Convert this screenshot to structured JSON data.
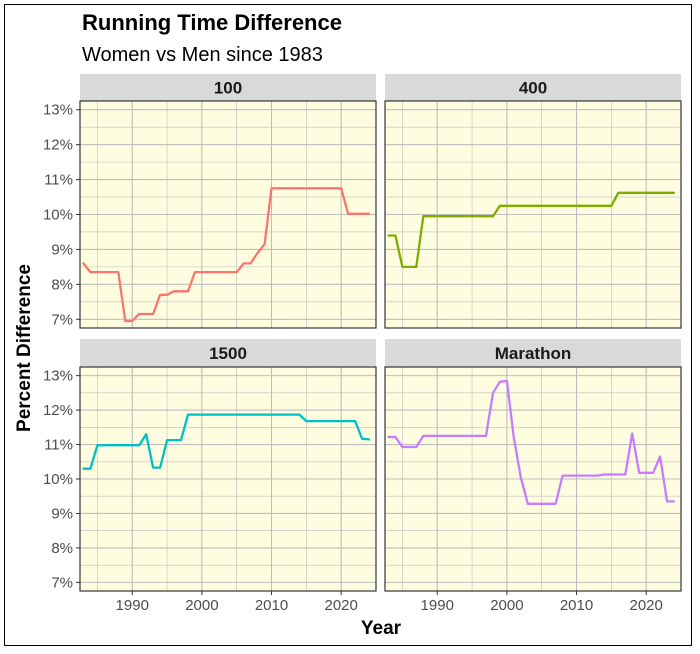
{
  "chart_data": {
    "type": "line",
    "title": "Running Time Difference",
    "subtitle": "Women vs Men since 1983",
    "xlabel": "Year",
    "ylabel": "Percent Difference",
    "xlim": [
      1982.5,
      2025
    ],
    "ylim": [
      6.75,
      13.25
    ],
    "x_ticks": [
      1990,
      2000,
      2010,
      2020
    ],
    "y_ticks": [
      7,
      8,
      9,
      10,
      11,
      12,
      13
    ],
    "y_tick_labels": [
      "7%",
      "8%",
      "9%",
      "10%",
      "11%",
      "12%",
      "13%"
    ],
    "grid": true,
    "panel_background": "#fffde0",
    "strip_background": "#d9d9d9",
    "grid_color": "#bdbdbd",
    "panels": [
      {
        "name": "100",
        "color": "#f8766d",
        "x": [
          1983,
          1984,
          1985,
          1986,
          1987,
          1988,
          1989,
          1990,
          1991,
          1992,
          1993,
          1994,
          1995,
          1996,
          1997,
          1998,
          1999,
          2000,
          2001,
          2002,
          2003,
          2004,
          2005,
          2006,
          2007,
          2008,
          2009,
          2010,
          2015,
          2019,
          2020,
          2021,
          2022,
          2023,
          2024
        ],
        "y": [
          8.6,
          8.35,
          8.35,
          8.35,
          8.35,
          8.35,
          6.95,
          6.95,
          7.15,
          7.15,
          7.15,
          7.7,
          7.7,
          7.8,
          7.8,
          7.8,
          8.35,
          8.35,
          8.35,
          8.35,
          8.35,
          8.35,
          8.35,
          8.6,
          8.6,
          8.9,
          9.15,
          10.75,
          10.75,
          10.75,
          10.75,
          10.02,
          10.02,
          10.02,
          10.02
        ]
      },
      {
        "name": "400",
        "color": "#7cae00",
        "x": [
          1983,
          1984,
          1985,
          1986,
          1987,
          1988,
          1989,
          1990,
          1995,
          1998,
          1999,
          2000,
          2005,
          2010,
          2014,
          2015,
          2016,
          2017,
          2020,
          2024
        ],
        "y": [
          9.4,
          9.4,
          8.5,
          8.5,
          8.5,
          9.95,
          9.95,
          9.95,
          9.95,
          9.95,
          10.25,
          10.25,
          10.25,
          10.25,
          10.25,
          10.25,
          10.62,
          10.62,
          10.62,
          10.62
        ]
      },
      {
        "name": "1500",
        "color": "#00bfc4",
        "x": [
          1983,
          1984,
          1985,
          1986,
          1990,
          1991,
          1992,
          1993,
          1994,
          1995,
          1996,
          1997,
          1998,
          2000,
          2005,
          2010,
          2014,
          2015,
          2020,
          2022,
          2023,
          2024
        ],
        "y": [
          10.3,
          10.3,
          10.98,
          10.98,
          10.98,
          10.98,
          11.3,
          10.33,
          10.33,
          11.13,
          11.13,
          11.13,
          11.87,
          11.87,
          11.87,
          11.87,
          11.87,
          11.68,
          11.68,
          11.68,
          11.17,
          11.15
        ]
      },
      {
        "name": "Marathon",
        "color": "#c77cff",
        "x": [
          1983,
          1984,
          1985,
          1986,
          1987,
          1988,
          1990,
          1995,
          1997,
          1998,
          1999,
          2000,
          2001,
          2002,
          2003,
          2005,
          2007,
          2008,
          2010,
          2013,
          2014,
          2015,
          2017,
          2018,
          2019,
          2021,
          2022,
          2023,
          2024
        ],
        "y": [
          11.22,
          11.22,
          10.93,
          10.93,
          10.93,
          11.25,
          11.25,
          11.25,
          11.25,
          12.5,
          12.82,
          12.85,
          11.2,
          10.05,
          9.28,
          9.28,
          9.28,
          10.1,
          10.1,
          10.1,
          10.13,
          10.13,
          10.13,
          11.32,
          10.18,
          10.18,
          10.65,
          9.35,
          9.35
        ]
      }
    ]
  }
}
